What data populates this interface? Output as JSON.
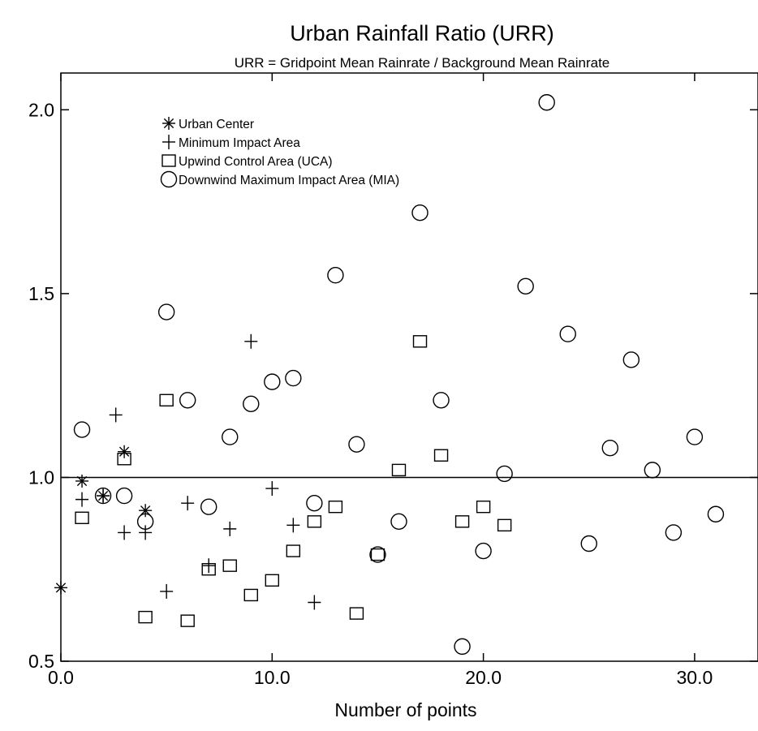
{
  "chart_data": {
    "type": "scatter",
    "title": "Urban Rainfall Ratio (URR)",
    "subtitle": "URR = Gridpoint Mean Rainrate / Background Mean Rainrate",
    "xlabel": "Number of points",
    "ylabel": "",
    "xlim": [
      0,
      33
    ],
    "ylim": [
      0.5,
      2.1
    ],
    "x_ticks": [
      {
        "value": 0,
        "label": "0.0"
      },
      {
        "value": 10,
        "label": "10.0"
      },
      {
        "value": 20,
        "label": "20.0"
      },
      {
        "value": 30,
        "label": "30.0"
      }
    ],
    "y_ticks": [
      {
        "value": 0.5,
        "label": "0.5"
      },
      {
        "value": 1.0,
        "label": "1.0"
      },
      {
        "value": 1.5,
        "label": "1.5"
      },
      {
        "value": 2.0,
        "label": "2.0"
      }
    ],
    "reference_line": 1.0,
    "grid": false,
    "legend_position": "top-left",
    "series": [
      {
        "name": "Urban Center",
        "marker": "asterisk",
        "points": [
          [
            0,
            0.7
          ],
          [
            1,
            0.99
          ],
          [
            2,
            0.95
          ],
          [
            3,
            1.07
          ],
          [
            4,
            0.91
          ]
        ]
      },
      {
        "name": "Minimum Impact Area",
        "marker": "plus",
        "points": [
          [
            1,
            0.94
          ],
          [
            2,
            0.95
          ],
          [
            2.6,
            1.17
          ],
          [
            3,
            0.85
          ],
          [
            4,
            0.85
          ],
          [
            5,
            0.69
          ],
          [
            6,
            0.93
          ],
          [
            7,
            0.76
          ],
          [
            8,
            0.86
          ],
          [
            9,
            1.37
          ],
          [
            10,
            0.97
          ],
          [
            11,
            0.87
          ],
          [
            12,
            0.66
          ]
        ]
      },
      {
        "name": "Upwind Control Area (UCA)",
        "marker": "square",
        "points": [
          [
            1,
            0.89
          ],
          [
            3,
            1.05
          ],
          [
            4,
            0.62
          ],
          [
            5,
            1.21
          ],
          [
            6,
            0.61
          ],
          [
            7,
            0.75
          ],
          [
            8,
            0.76
          ],
          [
            9,
            0.68
          ],
          [
            10,
            0.72
          ],
          [
            11,
            0.8
          ],
          [
            12,
            0.88
          ],
          [
            13,
            0.92
          ],
          [
            14,
            0.63
          ],
          [
            15,
            0.79
          ],
          [
            16,
            1.02
          ],
          [
            17,
            1.37
          ],
          [
            18,
            1.06
          ],
          [
            19,
            0.88
          ],
          [
            20,
            0.92
          ],
          [
            21,
            0.87
          ]
        ]
      },
      {
        "name": "Downwind Maximum Impact Area (MIA)",
        "marker": "circle",
        "points": [
          [
            1,
            1.13
          ],
          [
            2,
            0.95
          ],
          [
            3,
            0.95
          ],
          [
            4,
            0.88
          ],
          [
            5,
            1.45
          ],
          [
            6,
            1.21
          ],
          [
            7,
            0.92
          ],
          [
            8,
            1.11
          ],
          [
            9,
            1.2
          ],
          [
            10,
            1.26
          ],
          [
            11,
            1.27
          ],
          [
            12,
            0.93
          ],
          [
            13,
            1.55
          ],
          [
            14,
            1.09
          ],
          [
            15,
            0.79
          ],
          [
            16,
            0.88
          ],
          [
            17,
            1.72
          ],
          [
            18,
            1.21
          ],
          [
            19,
            0.54
          ],
          [
            20,
            0.8
          ],
          [
            21,
            1.01
          ],
          [
            22,
            1.52
          ],
          [
            23,
            2.02
          ],
          [
            24,
            1.39
          ],
          [
            25,
            0.82
          ],
          [
            26,
            1.08
          ],
          [
            27,
            1.32
          ],
          [
            28,
            1.02
          ],
          [
            29,
            0.85
          ],
          [
            30,
            1.11
          ],
          [
            31,
            0.9
          ]
        ]
      }
    ]
  }
}
